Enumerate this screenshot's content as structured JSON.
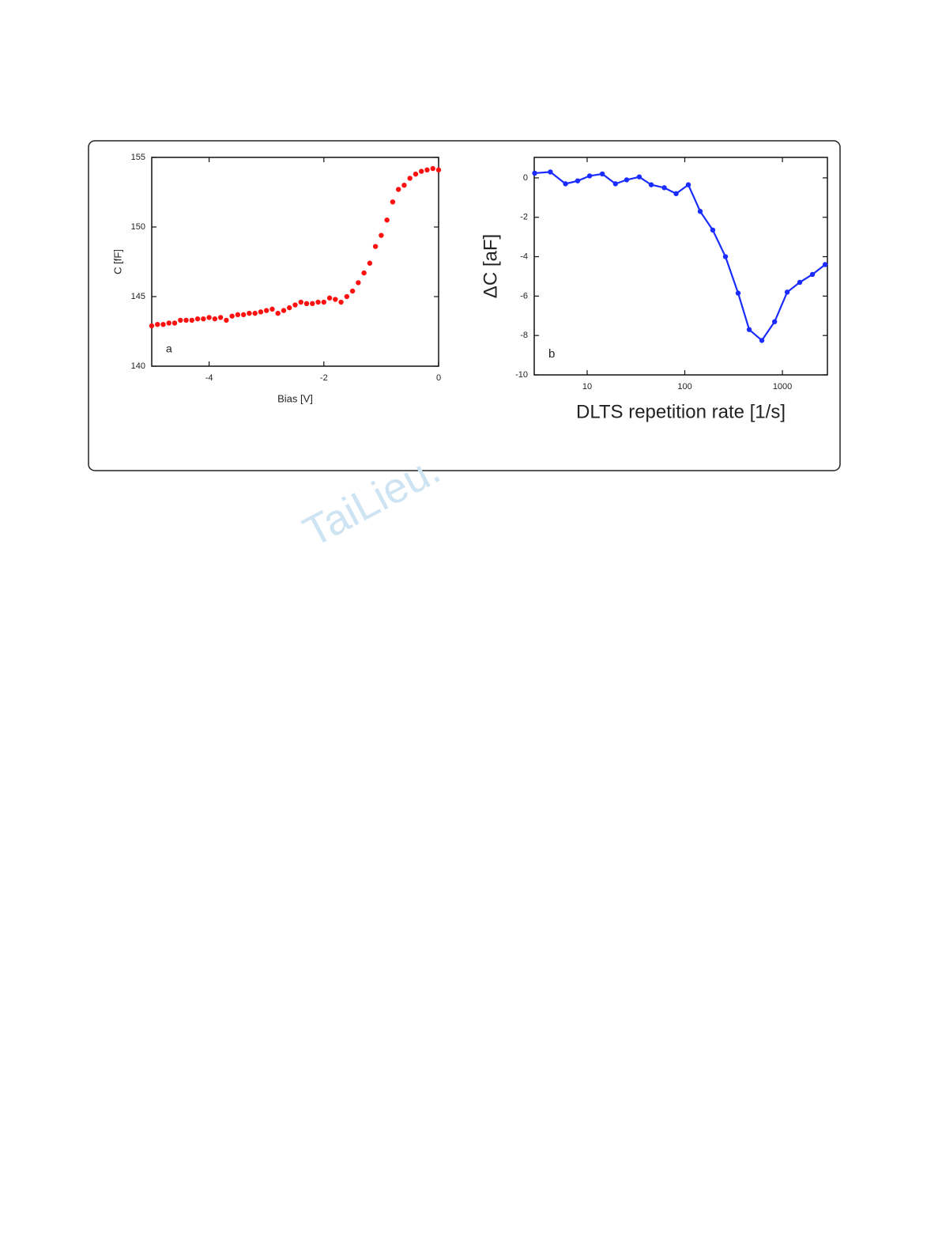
{
  "watermark": "TaiLieu.",
  "chart_data": [
    {
      "type": "scatter",
      "annotation": "a",
      "x_label": "Bias [V]",
      "y_label": "C [fF]",
      "color": "#ff1010",
      "x": [
        -5.0,
        -4.9,
        -4.8,
        -4.7,
        -4.6,
        -4.5,
        -4.4,
        -4.3,
        -4.2,
        -4.1,
        -4.0,
        -3.9,
        -3.8,
        -3.7,
        -3.6,
        -3.5,
        -3.4,
        -3.3,
        -3.2,
        -3.1,
        -3.0,
        -2.9,
        -2.8,
        -2.7,
        -2.6,
        -2.5,
        -2.4,
        -2.3,
        -2.2,
        -2.1,
        -2.0,
        -1.9,
        -1.8,
        -1.7,
        -1.6,
        -1.5,
        -1.4,
        -1.3,
        -1.2,
        -1.1,
        -1.0,
        -0.9,
        -0.8,
        -0.7,
        -0.6,
        -0.5,
        -0.4,
        -0.3,
        -0.2,
        -0.1,
        0
      ],
      "values": [
        142.9,
        143.0,
        143.0,
        143.1,
        143.1,
        143.3,
        143.3,
        143.3,
        143.4,
        143.4,
        143.5,
        143.4,
        143.5,
        143.3,
        143.6,
        143.7,
        143.7,
        143.8,
        143.8,
        143.9,
        144.0,
        144.1,
        143.8,
        144.0,
        144.2,
        144.4,
        144.6,
        144.5,
        144.5,
        144.6,
        144.6,
        144.9,
        144.8,
        144.6,
        145.0,
        145.4,
        146.0,
        146.7,
        147.4,
        148.6,
        149.4,
        150.5,
        151.8,
        152.7,
        153.0,
        153.5,
        153.8,
        154.0,
        154.1,
        154.2,
        154.1
      ],
      "xlim": [
        -5,
        0
      ],
      "xticks": [
        -4,
        -2,
        0
      ],
      "ylim": [
        140,
        155
      ],
      "yticks": [
        140,
        145,
        150,
        155
      ]
    },
    {
      "type": "line",
      "annotation": "b",
      "x_label": "DLTS repetition rate [1/s]",
      "y_label": "ΔC [aF]",
      "color": "#1a2cff",
      "xscale": "log",
      "x": [
        2.9,
        4.2,
        6.0,
        8.0,
        10.6,
        14.3,
        19.5,
        25.4,
        34.2,
        45.3,
        61.7,
        81.5,
        108.7,
        143.8,
        193.6,
        261,
        352,
        457,
        616,
        832,
        1119,
        1507,
        2030,
        2740
      ],
      "values": [
        0.24,
        0.3,
        -0.3,
        -0.15,
        0.1,
        0.2,
        -0.3,
        -0.1,
        0.05,
        -0.35,
        -0.5,
        -0.8,
        -0.35,
        -1.7,
        -2.65,
        -4.0,
        -5.85,
        -7.7,
        -8.25,
        -7.3,
        -5.8,
        -5.3,
        -4.9,
        -4.4
      ],
      "xlim": [
        2.87,
        2890
      ],
      "xticks": [
        10,
        100,
        1000
      ],
      "ylim": [
        -10,
        1.04
      ],
      "yticks": [
        0,
        -2,
        -4,
        -6,
        -8,
        -10
      ]
    }
  ]
}
